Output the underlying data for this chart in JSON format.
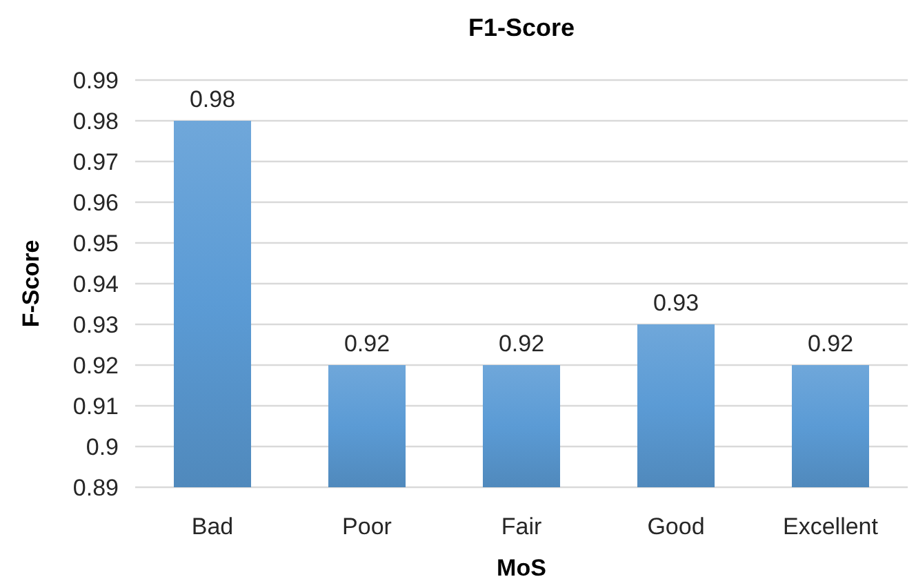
{
  "chart_data": {
    "type": "bar",
    "title": "F1-Score",
    "xlabel": "MoS",
    "ylabel": "F-Score",
    "categories": [
      "Bad",
      "Poor",
      "Fair",
      "Good",
      "Excellent"
    ],
    "values": [
      0.98,
      0.92,
      0.92,
      0.93,
      0.92
    ],
    "color": "#5b9bd5",
    "ylim": [
      0.89,
      0.99
    ],
    "yticks": [
      0.89,
      {
        "value": 0.9,
        "label": "0.9"
      },
      0.91,
      0.92,
      0.93,
      0.94,
      0.95,
      0.96,
      0.97,
      0.98,
      0.99
    ],
    "grid": "y",
    "data_labels": true
  }
}
